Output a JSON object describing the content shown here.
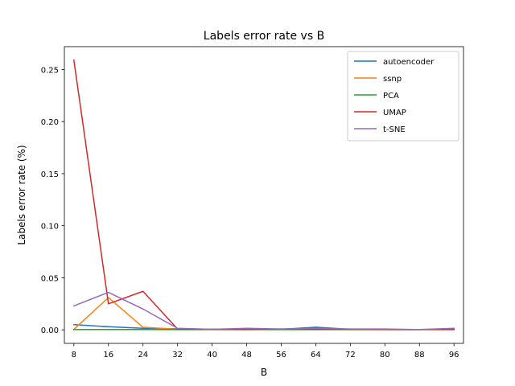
{
  "chart_data": {
    "type": "line",
    "title": "Labels error rate vs B",
    "xlabel": "B",
    "ylabel": "Labels error rate (%)",
    "x": [
      8,
      16,
      24,
      32,
      40,
      48,
      56,
      64,
      72,
      80,
      88,
      96
    ],
    "xticks": [
      "8",
      "16",
      "24",
      "32",
      "40",
      "48",
      "56",
      "64",
      "72",
      "80",
      "88",
      "96"
    ],
    "yticks": [
      0.0,
      0.05,
      0.1,
      0.15,
      0.2,
      0.25
    ],
    "ytick_labels": [
      "0.00",
      "0.05",
      "0.10",
      "0.15",
      "0.20",
      "0.25"
    ],
    "xlim": [
      5.8,
      98.2
    ],
    "ylim": [
      -0.013,
      0.272
    ],
    "grid": false,
    "legend_position": "top-right",
    "series": [
      {
        "name": "autoencoder",
        "color": "#1f77b4",
        "values": [
          0.005,
          0.003,
          0.0015,
          0.001,
          0.0005,
          0.0008,
          0.0005,
          0.0025,
          0.0005,
          0.0003,
          0.0002,
          0.0008
        ]
      },
      {
        "name": "ssnp",
        "color": "#ff7f0e",
        "values": [
          0.0005,
          0.031,
          0.0025,
          0.0005,
          0.0003,
          0.0005,
          0.0005,
          0.0005,
          0.0003,
          0.0003,
          0.0002,
          0.0008
        ]
      },
      {
        "name": "PCA",
        "color": "#2ca02c",
        "values": [
          0.0003,
          0.0003,
          0.0003,
          0.0002,
          0.0002,
          0.0002,
          0.0002,
          0.0002,
          0.0002,
          0.0002,
          0.0002,
          0.0002
        ]
      },
      {
        "name": "UMAP",
        "color": "#d62728",
        "values": [
          0.259,
          0.025,
          0.037,
          0.0008,
          0.0005,
          0.0003,
          0.0008,
          0.0005,
          0.0005,
          0.0003,
          0.0003,
          0.0003
        ]
      },
      {
        "name": "t-SNE",
        "color": "#9467bd",
        "values": [
          0.023,
          0.036,
          0.02,
          0.0015,
          0.0005,
          0.0015,
          0.0008,
          0.0015,
          0.0008,
          0.0008,
          0.0003,
          0.0015
        ]
      }
    ]
  }
}
